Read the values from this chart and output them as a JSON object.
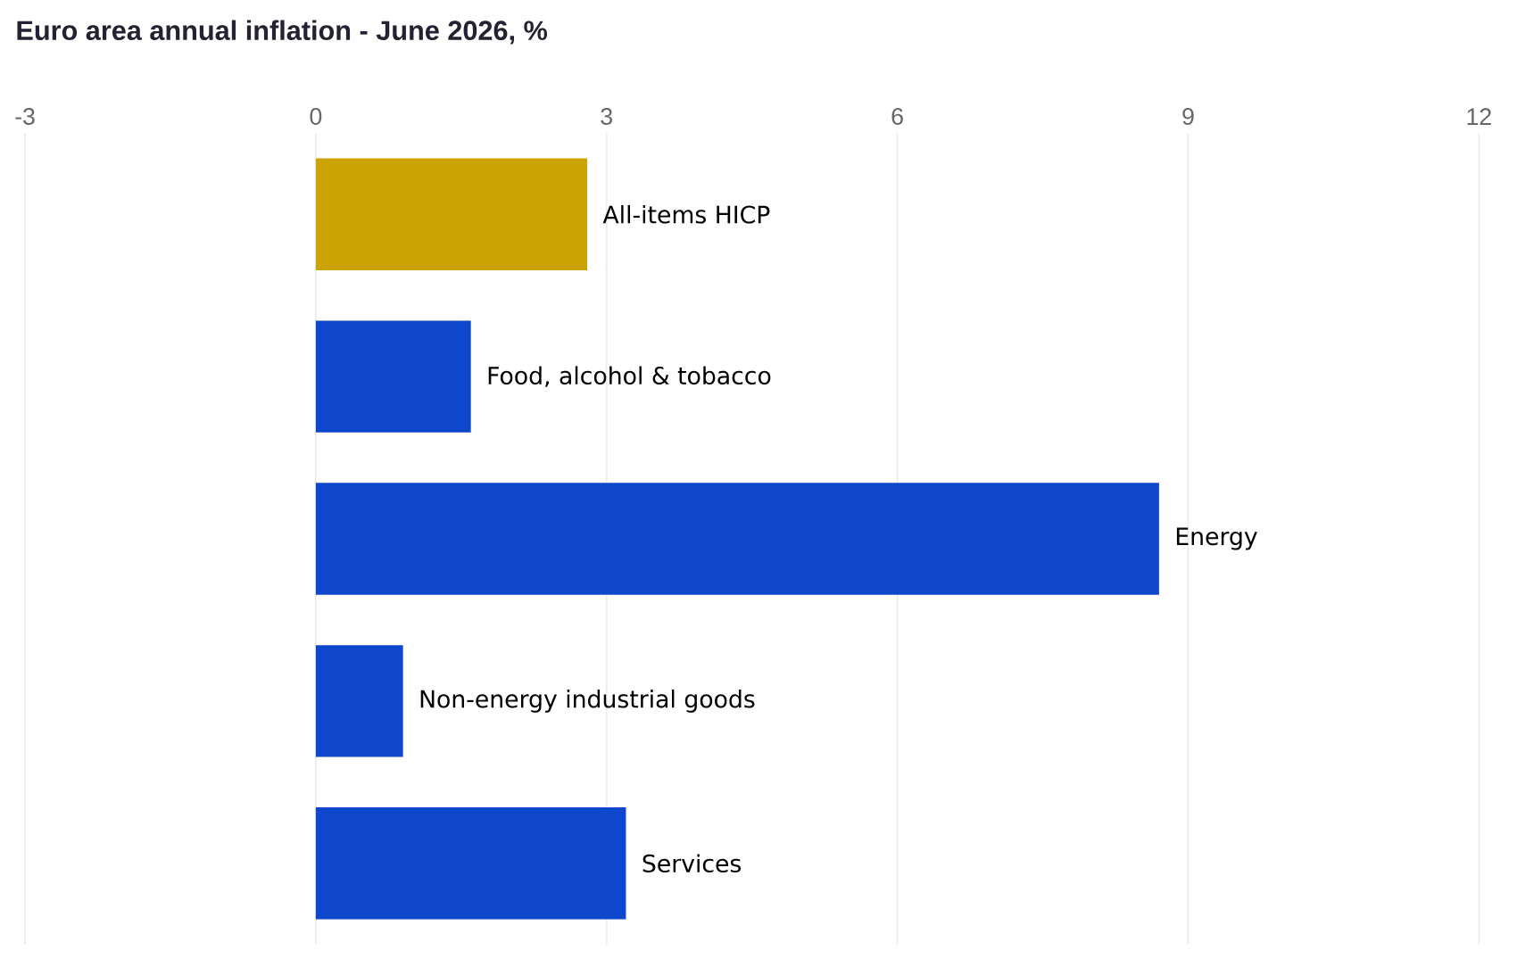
{
  "chart_data": {
    "type": "bar",
    "orientation": "horizontal",
    "title": "Euro area annual inflation - June 2026, %",
    "categories": [
      "All-items HICP",
      "Food, alcohol & tobacco",
      "Energy",
      "Non-energy industrial goods",
      "Services"
    ],
    "values": [
      2.8,
      1.6,
      8.7,
      0.9,
      3.2
    ],
    "colors": [
      "#cca300",
      "#0f47cc",
      "#0f47cc",
      "#0f47cc",
      "#0f47cc"
    ],
    "xlim": [
      -3,
      12
    ],
    "xticks": [
      -3,
      0,
      3,
      6,
      9,
      12
    ],
    "grid": "x"
  }
}
